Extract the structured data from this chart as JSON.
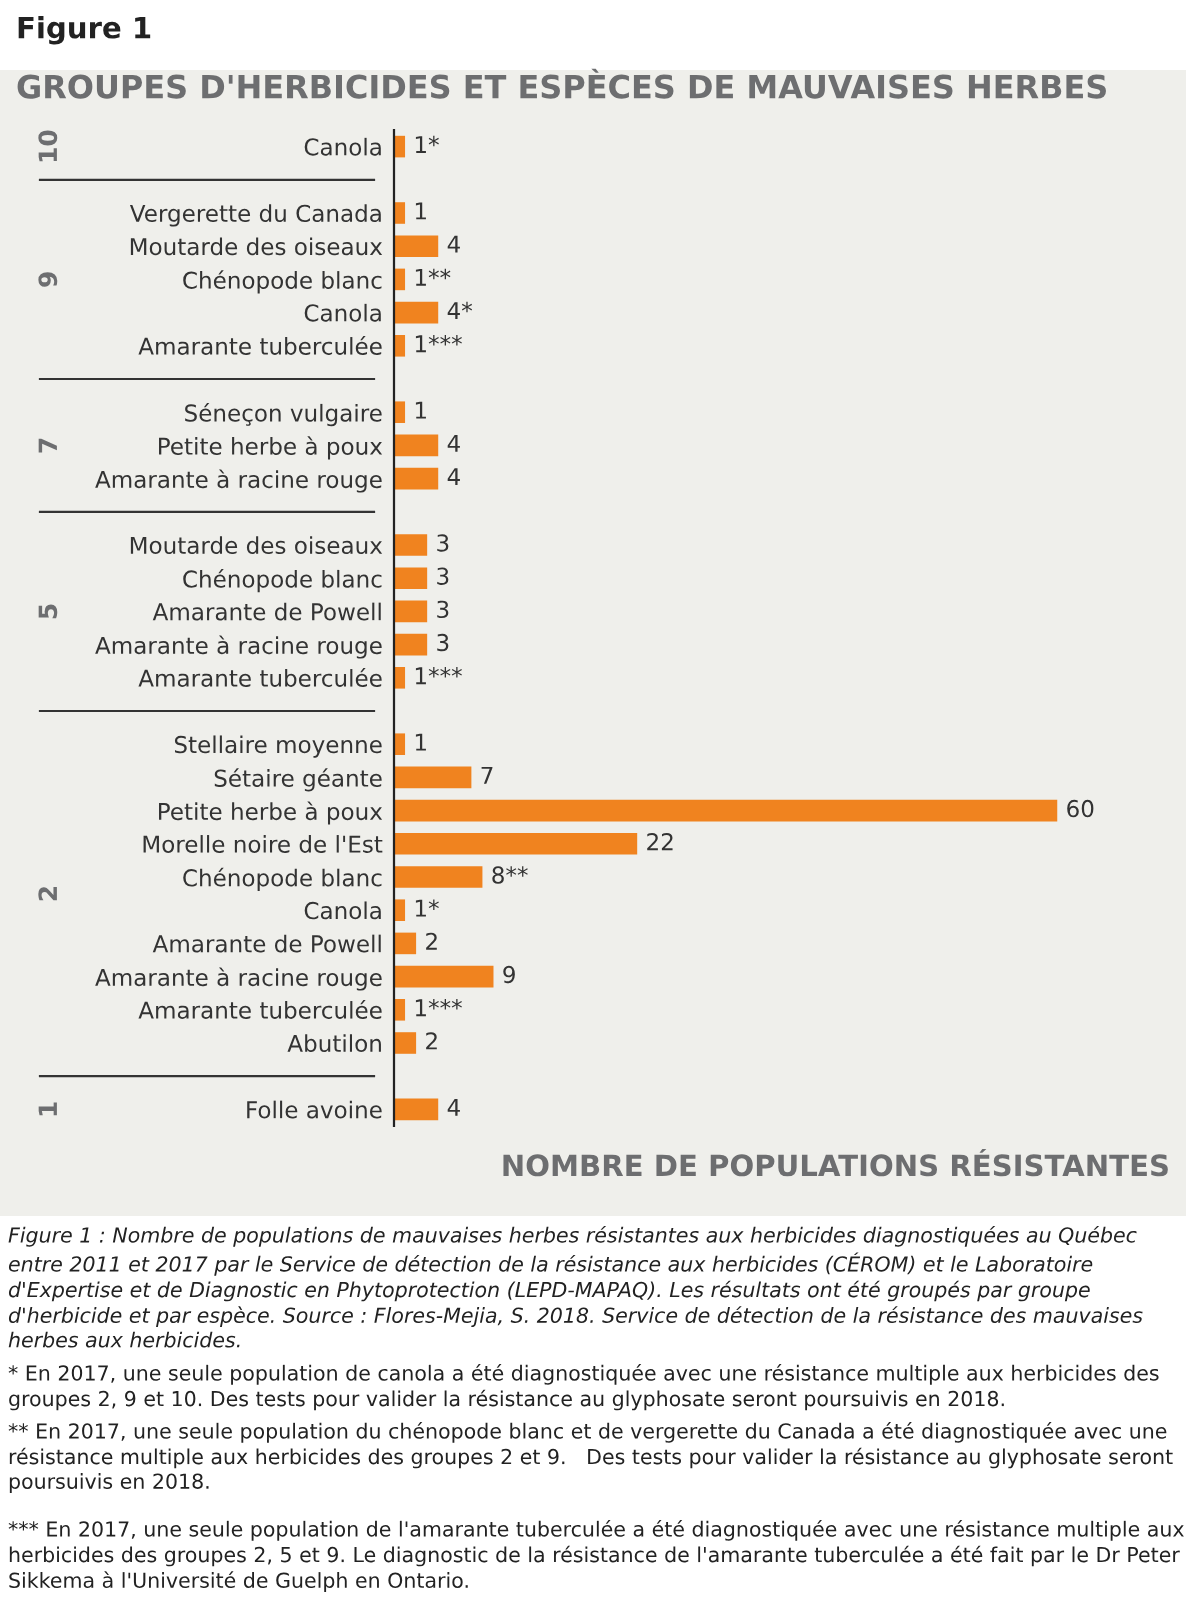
{
  "chart_data": {
    "type": "bar",
    "orientation": "horizontal",
    "title": "Figure 1",
    "subtitle": "GROUPES D'HERBICIDES ET ESPÈCES DE MAUVAISES HERBES",
    "xlabel": "NOMBRE DE POPULATIONS RÉSISTANTES",
    "categories": [
      "Canola",
      null,
      "Vergerette du Canada",
      "Moutarde des oiseaux",
      "Chénopode blanc",
      "Canola",
      "Amarante tuberculée",
      null,
      "Séneçon vulgaire",
      "Petite herbe à poux",
      "Amarante à racine rouge",
      null,
      "Moutarde des oiseaux",
      "Chénopode blanc",
      "Amarante de Powell",
      "Amarante à racine rouge",
      "Amarante tuberculée",
      null,
      "Stellaire moyenne",
      "Sétaire géante",
      "Petite herbe à poux",
      "Morelle noire de l'Est",
      "Chénopode blanc",
      "Canola",
      "Amarante de Powell",
      "Amarante à racine rouge",
      "Amarante tuberculée",
      "Abutilon",
      null,
      "Folle avoine"
    ],
    "values": [
      1,
      null,
      1,
      4,
      1,
      4,
      1,
      null,
      1,
      4,
      4,
      null,
      3,
      3,
      3,
      3,
      1,
      null,
      1,
      7,
      60,
      22,
      8,
      1,
      2,
      9,
      1,
      2,
      null,
      4
    ],
    "value_labels": [
      "1*",
      null,
      "1",
      "4",
      "1**",
      "4*",
      "1***",
      null,
      "1",
      "4",
      "4",
      null,
      "3",
      "3",
      "3",
      "3",
      "1***",
      null,
      "1",
      "7",
      "60",
      "22",
      "8**",
      "1*",
      "2",
      "9",
      "1***",
      "2",
      null,
      "4"
    ],
    "color": "#f0831f",
    "annotations": [
      "10",
      "9",
      "7",
      "5",
      "2",
      "1",
      "Figure 1 : Nombre de populations de mauvaises herbes résistantes aux herbicides diagnostiquées au Québec entre 2011 et 2017 par le Service de détection de la résistance aux herbicides (CÉROM) et le Laboratoire d'Expertise et de Diagnostic en Phytoprotection (LEPD-MAPAQ). Les résultats ont été groupés par groupe d'herbicide et par espèce. Source : Flores-Mejia, S. 2018. Service de détection de la résistance des mauvaises herbes aux herbicides.",
      "* En 2017, une seule population de canola a été diagnostiquée avec une résistance multiple aux herbicides des groupes 2, 9 et 10. Des tests pour valider la résistance au glyphosate seront poursuivis en 2018.",
      "** En 2017, une seule population du chénopode blanc et de vergerette du Canada a été diagnostiquée avec une résistance multiple aux herbicides des groupes 2 et 9.   Des tests pour valider la résistance au glyphosate seront poursuivis en 2018.",
      "*** En 2017, une seule population de l'amarante tuberculée a été diagnostiquée avec une résistance multiple aux herbicides des groupes 2, 5 et 9. Le diagnostic de la résistance de l'amarante tuberculée a été fait par le Dr Peter Sikkema à l'Université de Guelph en Ontario."
    ]
  }
}
